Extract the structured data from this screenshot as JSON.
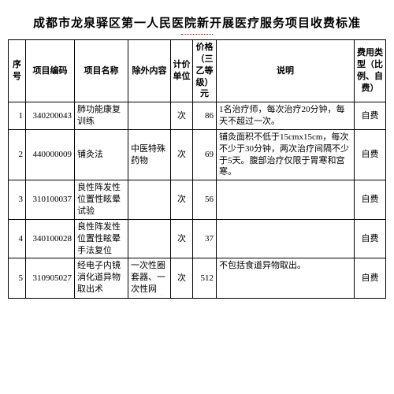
{
  "title": "成都市龙泉驿区第一人民医院新开展医疗服务项目收费标准",
  "columns": {
    "idx": "序号",
    "code": "项目编码",
    "name": "项目名称",
    "excl": "除外内容",
    "unit": "计价单位",
    "price": "价格（三乙等级）元",
    "desc": "说明",
    "type": "费用类型（比例、自费）"
  },
  "rows": [
    {
      "idx": "1",
      "code": "340200043",
      "name": "肺功能康复训练",
      "excl": "",
      "unit": "次",
      "price": "86",
      "desc": "1名治疗师，每次治疗20分钟，每天不超过一次。",
      "type": "自费"
    },
    {
      "idx": "2",
      "code": "440000009",
      "name": "铺灸法",
      "excl": "中医特殊药物",
      "unit": "次",
      "price": "69",
      "desc": "铺灸面积不低于15cmx15cm，每次不少于30分钟，两次治疗间隔不少于5天。腹部治疗仅限于胃寒和宫寒。",
      "type": "自费"
    },
    {
      "idx": "3",
      "code": "310100037",
      "name": "良性阵发性位置性眩晕试验",
      "excl": "",
      "unit": "次",
      "price": "56",
      "desc": "",
      "type": "自费"
    },
    {
      "idx": "4",
      "code": "340100028",
      "name": "良性阵发性位置性眩晕手法复位",
      "excl": "",
      "unit": "次",
      "price": "37",
      "desc": "",
      "type": "自费"
    },
    {
      "idx": "5",
      "code": "310905027",
      "name": "经电子内镜消化道异物取出术",
      "excl": "一次性圈套器、一次性网篮、一次性异物钳",
      "unit": "次",
      "price": "512",
      "desc": "不包括食道异物取出。",
      "type": "自费"
    }
  ]
}
